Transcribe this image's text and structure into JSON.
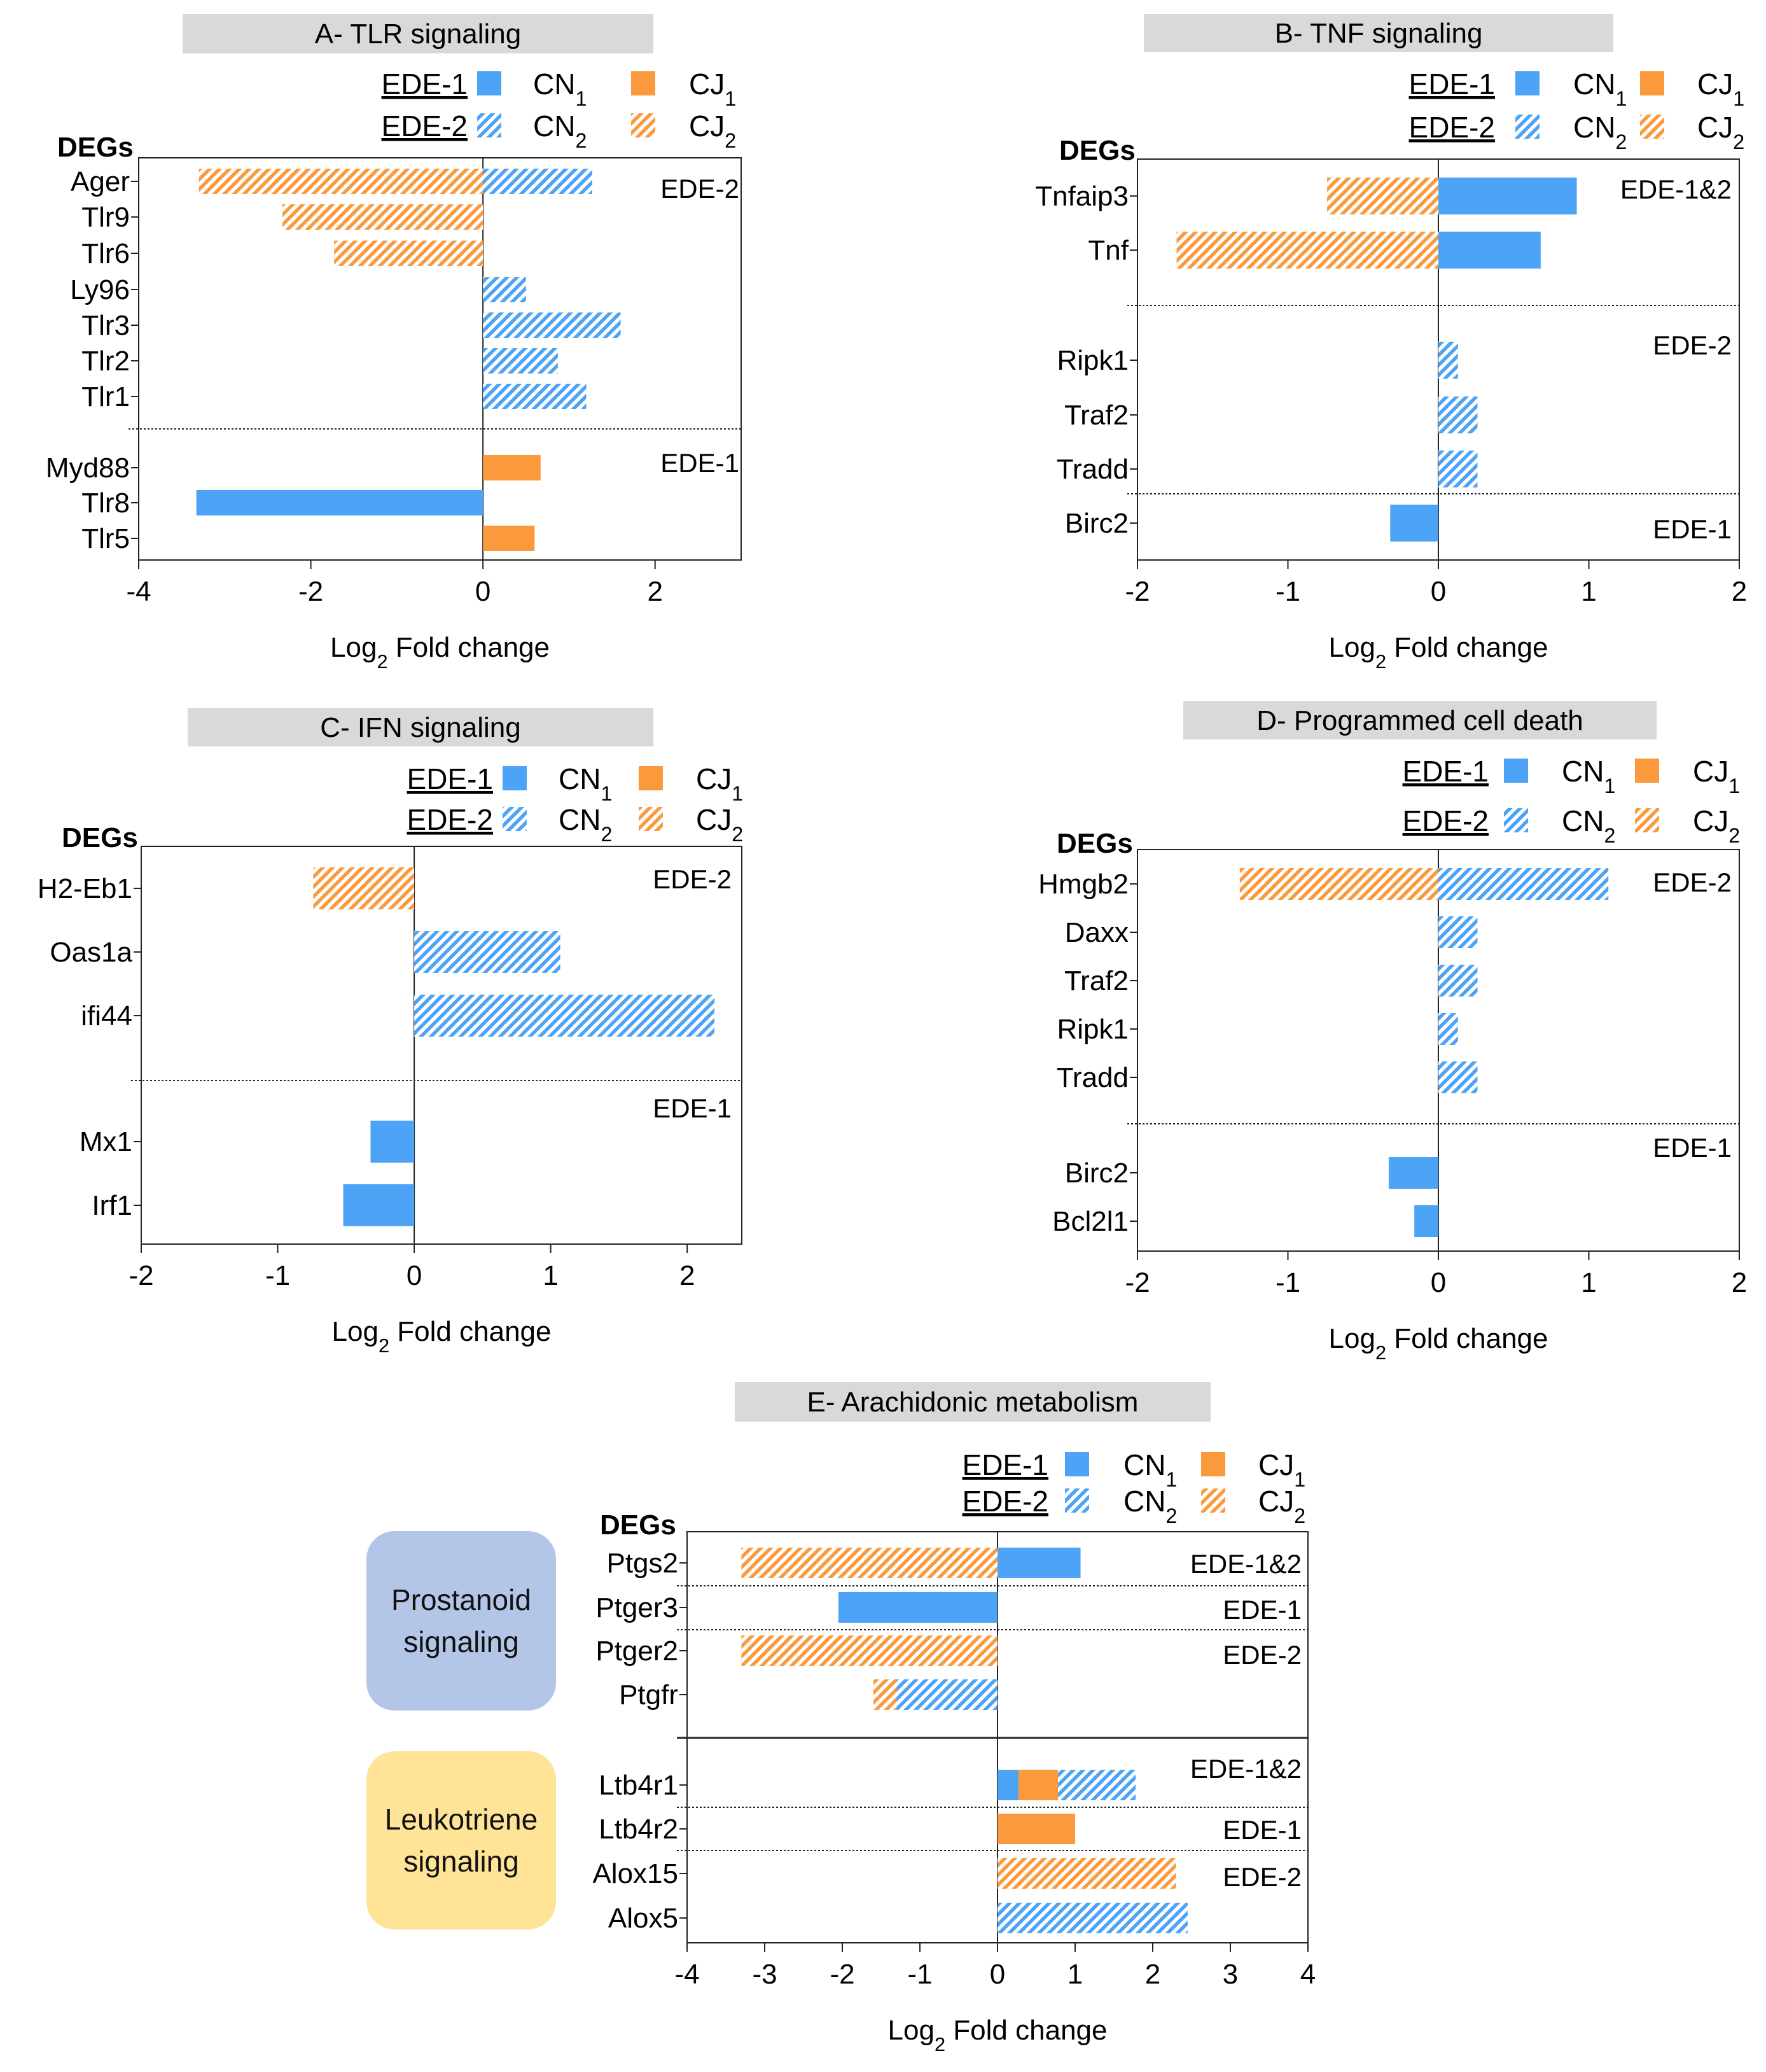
{
  "legend": {
    "ede1": "EDE-1",
    "ede2": "EDE-2",
    "cn": "CN",
    "cj": "CJ",
    "sub1": "1",
    "sub2": "2"
  },
  "common": {
    "degs_label": "DEGs",
    "xlabel_main": "Log",
    "xlabel_sub": "2",
    "xlabel_rest": " Fold change"
  },
  "colors": {
    "cn": "#4da3f5",
    "cj": "#fb9a3d",
    "panel_title_bg": "#d9d9d9",
    "prostanoid_bg": "#b4c6e7",
    "leukotriene_bg": "#ffe498"
  },
  "side_labels": {
    "prostanoid": [
      "Prostanoid",
      "signaling"
    ],
    "leukotriene": [
      "Leukotriene",
      "signaling"
    ]
  },
  "chart_data": [
    {
      "id": "A",
      "type": "bar",
      "orientation": "horizontal",
      "title": "A- TLR signaling",
      "xlabel": "Log2 Fold change",
      "xlim": [
        -4,
        3
      ],
      "xticks": [
        -4,
        -2,
        0,
        2
      ],
      "categories": [
        "Ager",
        "Tlr9",
        "Tlr6",
        "Ly96",
        "Tlr3",
        "Tlr2",
        "Tlr1",
        "Myd88",
        "Tlr8",
        "Tlr5"
      ],
      "bars": [
        {
          "gene": "Ager",
          "series": "CJ2",
          "from": 0,
          "to": -3.3
        },
        {
          "gene": "Ager",
          "series": "CN2",
          "from": 0,
          "to": 1.27
        },
        {
          "gene": "Tlr9",
          "series": "CJ2",
          "from": 0,
          "to": -2.33
        },
        {
          "gene": "Tlr6",
          "series": "CJ2",
          "from": 0,
          "to": -1.73
        },
        {
          "gene": "Ly96",
          "series": "CN2",
          "from": 0,
          "to": 0.5
        },
        {
          "gene": "Tlr3",
          "series": "CN2",
          "from": 0,
          "to": 1.6
        },
        {
          "gene": "Tlr2",
          "series": "CN2",
          "from": 0,
          "to": 0.87
        },
        {
          "gene": "Tlr1",
          "series": "CN2",
          "from": 0,
          "to": 1.2
        },
        {
          "gene": "Myd88",
          "series": "CJ1",
          "from": 0,
          "to": 0.67
        },
        {
          "gene": "Tlr8",
          "series": "CN1",
          "from": 0,
          "to": -3.33
        },
        {
          "gene": "Tlr5",
          "series": "CJ1",
          "from": 0,
          "to": 0.6
        }
      ],
      "sections": [
        {
          "label": "EDE-2",
          "genes": [
            "Ager",
            "Tlr9",
            "Tlr6",
            "Ly96",
            "Tlr3",
            "Tlr2",
            "Tlr1"
          ]
        },
        {
          "label": "EDE-1",
          "genes": [
            "Myd88",
            "Tlr8",
            "Tlr5"
          ]
        }
      ]
    },
    {
      "id": "B",
      "type": "bar",
      "orientation": "horizontal",
      "title": "B- TNF signaling",
      "xlabel": "Log2 Fold change",
      "xlim": [
        -2,
        2
      ],
      "xticks": [
        -2,
        -1,
        0,
        1,
        2
      ],
      "categories": [
        "Tnfaip3",
        "Tnf",
        "Ripk1",
        "Traf2",
        "Tradd",
        "Birc2"
      ],
      "bars": [
        {
          "gene": "Tnfaip3",
          "series": "CJ2",
          "from": 0,
          "to": -0.74
        },
        {
          "gene": "Tnfaip3",
          "series": "CN1",
          "from": 0,
          "to": 0.92
        },
        {
          "gene": "Tnf",
          "series": "CJ2",
          "from": 0,
          "to": -1.74
        },
        {
          "gene": "Tnf",
          "series": "CN1",
          "from": 0,
          "to": 0.68
        },
        {
          "gene": "Ripk1",
          "series": "CN2",
          "from": 0,
          "to": 0.13
        },
        {
          "gene": "Traf2",
          "series": "CN2",
          "from": 0,
          "to": 0.26
        },
        {
          "gene": "Tradd",
          "series": "CN2",
          "from": 0,
          "to": 0.26
        },
        {
          "gene": "Birc2",
          "series": "CN1",
          "from": 0,
          "to": -0.32
        }
      ],
      "sections": [
        {
          "label": "EDE-1&2",
          "genes": [
            "Tnfaip3",
            "Tnf"
          ]
        },
        {
          "label": "EDE-2",
          "genes": [
            "Ripk1",
            "Traf2",
            "Tradd"
          ]
        },
        {
          "label": "EDE-1",
          "genes": [
            "Birc2"
          ]
        }
      ]
    },
    {
      "id": "C",
      "type": "bar",
      "orientation": "horizontal",
      "title": "C- IFN signaling",
      "xlabel": "Log2 Fold change",
      "xlim": [
        -2,
        2.4
      ],
      "xticks": [
        -2,
        -1,
        0,
        1,
        2
      ],
      "categories": [
        "H2-Eb1",
        "Oas1a",
        "ifi44",
        "Mx1",
        "Irf1"
      ],
      "bars": [
        {
          "gene": "H2-Eb1",
          "series": "CJ2",
          "from": 0,
          "to": -0.74
        },
        {
          "gene": "Oas1a",
          "series": "CN2",
          "from": 0,
          "to": 1.07
        },
        {
          "gene": "ifi44",
          "series": "CN2",
          "from": 0,
          "to": 2.2
        },
        {
          "gene": "Mx1",
          "series": "CN1",
          "from": 0,
          "to": -0.32
        },
        {
          "gene": "Irf1",
          "series": "CN1",
          "from": 0,
          "to": -0.52
        }
      ],
      "sections": [
        {
          "label": "EDE-2",
          "genes": [
            "H2-Eb1",
            "Oas1a",
            "ifi44"
          ]
        },
        {
          "label": "EDE-1",
          "genes": [
            "Mx1",
            "Irf1"
          ]
        }
      ]
    },
    {
      "id": "D",
      "type": "bar",
      "orientation": "horizontal",
      "title": "D- Programmed cell death",
      "xlabel": "Log2 Fold change",
      "xlim": [
        -2,
        2
      ],
      "xticks": [
        -2,
        -1,
        0,
        1,
        2
      ],
      "categories": [
        "Hmgb2",
        "Daxx",
        "Traf2",
        "Ripk1",
        "Tradd",
        "Birc2",
        "Bcl2l1"
      ],
      "bars": [
        {
          "gene": "Hmgb2",
          "series": "CJ2",
          "from": 0,
          "to": -1.32
        },
        {
          "gene": "Hmgb2",
          "series": "CN2",
          "from": 0,
          "to": 1.13
        },
        {
          "gene": "Daxx",
          "series": "CN2",
          "from": 0,
          "to": 0.26
        },
        {
          "gene": "Traf2",
          "series": "CN2",
          "from": 0,
          "to": 0.26
        },
        {
          "gene": "Ripk1",
          "series": "CN2",
          "from": 0,
          "to": 0.13
        },
        {
          "gene": "Tradd",
          "series": "CN2",
          "from": 0,
          "to": 0.26
        },
        {
          "gene": "Birc2",
          "series": "CN1",
          "from": 0,
          "to": -0.33
        },
        {
          "gene": "Bcl2l1",
          "series": "CN1",
          "from": 0,
          "to": -0.16
        }
      ],
      "sections": [
        {
          "label": "EDE-2",
          "genes": [
            "Hmgb2",
            "Daxx",
            "Traf2",
            "Ripk1",
            "Tradd"
          ]
        },
        {
          "label": "EDE-1",
          "genes": [
            "Birc2",
            "Bcl2l1"
          ]
        }
      ]
    },
    {
      "id": "E",
      "type": "bar",
      "orientation": "horizontal",
      "title": "E- Arachidonic metabolism",
      "xlabel": "Log2 Fold change",
      "xlim": [
        -4,
        4
      ],
      "xticks": [
        -4,
        -3,
        -2,
        -1,
        0,
        1,
        2,
        3,
        4
      ],
      "categories": [
        "Ptgs2",
        "Ptger3",
        "Ptger2",
        "Ptgfr",
        "Ltb4r1",
        "Ltb4r2",
        "Alox15",
        "Alox5"
      ],
      "bars": [
        {
          "gene": "Ptgs2",
          "series": "CJ2",
          "from": 0,
          "to": -3.3
        },
        {
          "gene": "Ptgs2",
          "series": "CN1",
          "from": 0,
          "to": 1.07
        },
        {
          "gene": "Ptger3",
          "series": "CN1",
          "from": 0,
          "to": -2.05
        },
        {
          "gene": "Ptger2",
          "series": "CJ2",
          "from": 0,
          "to": -3.3
        },
        {
          "gene": "Ptgfr",
          "series": "CN2",
          "from": 0,
          "to": -1.3
        },
        {
          "gene": "Ptgfr",
          "series": "CJ2",
          "from": -1.3,
          "to": -1.6
        },
        {
          "gene": "Ltb4r1",
          "series": "CN1",
          "from": 0,
          "to": 0.27
        },
        {
          "gene": "Ltb4r1",
          "series": "CJ1",
          "from": 0.27,
          "to": 0.78
        },
        {
          "gene": "Ltb4r1",
          "series": "CN2",
          "from": 0.78,
          "to": 1.78
        },
        {
          "gene": "Ltb4r2",
          "series": "CJ1",
          "from": 0,
          "to": 1.0
        },
        {
          "gene": "Alox15",
          "series": "CJ2",
          "from": 0,
          "to": 2.3
        },
        {
          "gene": "Alox5",
          "series": "CN2",
          "from": 0,
          "to": 2.45
        }
      ],
      "sections": [
        {
          "label": "EDE-1&2",
          "genes": [
            "Ptgs2"
          ]
        },
        {
          "label": "EDE-1",
          "genes": [
            "Ptger3"
          ]
        },
        {
          "label": "EDE-2",
          "genes": [
            "Ptger2",
            "Ptgfr"
          ]
        },
        {
          "label": "EDE-1&2",
          "genes": [
            "Ltb4r1"
          ]
        },
        {
          "label": "EDE-1",
          "genes": [
            "Ltb4r2"
          ]
        },
        {
          "label": "EDE-2",
          "genes": [
            "Alox15",
            "Alox5"
          ]
        }
      ]
    }
  ]
}
